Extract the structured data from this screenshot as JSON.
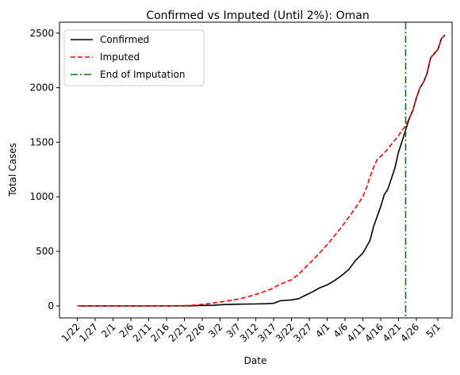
{
  "chart_data": {
    "type": "line",
    "title": "Confirmed vs Imputed (Until 2%): Oman",
    "xlabel": "Date",
    "ylabel": "Total Cases",
    "x_ticks": [
      "1/22",
      "1/27",
      "2/1",
      "2/6",
      "2/11",
      "2/16",
      "2/21",
      "2/26",
      "3/2",
      "3/7",
      "3/12",
      "3/17",
      "3/22",
      "3/27",
      "4/1",
      "4/6",
      "4/11",
      "4/16",
      "4/21",
      "4/26",
      "5/1"
    ],
    "y_ticks": [
      0,
      500,
      1000,
      1500,
      2000,
      2500
    ],
    "ylim": [
      -110,
      2600
    ],
    "xlim": [
      "1/17",
      "5/5"
    ],
    "grid": false,
    "legend_position": "top-left",
    "series": [
      {
        "name": "Confirmed",
        "color": "#000000",
        "style": "solid",
        "points": [
          [
            "1/22",
            0
          ],
          [
            "2/1",
            0
          ],
          [
            "2/11",
            0
          ],
          [
            "2/21",
            0
          ],
          [
            "2/24",
            2
          ],
          [
            "2/26",
            4
          ],
          [
            "2/29",
            6
          ],
          [
            "3/3",
            12
          ],
          [
            "3/7",
            16
          ],
          [
            "3/12",
            18
          ],
          [
            "3/15",
            20
          ],
          [
            "3/17",
            24
          ],
          [
            "3/19",
            48
          ],
          [
            "3/22",
            55
          ],
          [
            "3/24",
            66
          ],
          [
            "3/26",
            99
          ],
          [
            "3/28",
            131
          ],
          [
            "3/30",
            167
          ],
          [
            "4/1",
            192
          ],
          [
            "4/3",
            231
          ],
          [
            "4/5",
            277
          ],
          [
            "4/7",
            331
          ],
          [
            "4/9",
            419
          ],
          [
            "4/11",
            484
          ],
          [
            "4/13",
            599
          ],
          [
            "4/14",
            727
          ],
          [
            "4/16",
            910
          ],
          [
            "4/17",
            1019
          ],
          [
            "4/18",
            1069
          ],
          [
            "4/20",
            1266
          ],
          [
            "4/21",
            1410
          ],
          [
            "4/22",
            1508
          ],
          [
            "4/23",
            1614
          ],
          [
            "4/24",
            1716
          ],
          [
            "4/25",
            1790
          ],
          [
            "4/26",
            1905
          ],
          [
            "4/27",
            1998
          ],
          [
            "4/28",
            2049
          ],
          [
            "4/29",
            2131
          ],
          [
            "4/30",
            2274
          ],
          [
            "5/1",
            2348
          ],
          [
            "5/2",
            2447
          ],
          [
            "5/3",
            2483
          ]
        ]
      },
      {
        "name": "Imputed",
        "color": "#ff0000",
        "style": "dashed",
        "points": [
          [
            "1/22",
            0
          ],
          [
            "2/1",
            0
          ],
          [
            "2/11",
            0
          ],
          [
            "2/21",
            2
          ],
          [
            "2/24",
            8
          ],
          [
            "2/27",
            18
          ],
          [
            "3/1",
            30
          ],
          [
            "3/4",
            45
          ],
          [
            "3/7",
            62
          ],
          [
            "3/10",
            85
          ],
          [
            "3/13",
            115
          ],
          [
            "3/16",
            150
          ],
          [
            "3/19",
            200
          ],
          [
            "3/22",
            240
          ],
          [
            "3/24",
            290
          ],
          [
            "3/26",
            355
          ],
          [
            "3/28",
            420
          ],
          [
            "3/30",
            490
          ],
          [
            "4/1",
            560
          ],
          [
            "4/3",
            640
          ],
          [
            "4/5",
            720
          ],
          [
            "4/7",
            810
          ],
          [
            "4/9",
            900
          ],
          [
            "4/11",
            1000
          ],
          [
            "4/12",
            1080
          ],
          [
            "4/13",
            1180
          ],
          [
            "4/14",
            1270
          ],
          [
            "4/15",
            1340
          ],
          [
            "4/17",
            1400
          ],
          [
            "4/19",
            1480
          ],
          [
            "4/21",
            1560
          ],
          [
            "4/22",
            1610
          ],
          [
            "4/23",
            1650
          ],
          [
            "4/24",
            1720
          ],
          [
            "4/25",
            1790
          ],
          [
            "4/26",
            1905
          ],
          [
            "4/27",
            1998
          ],
          [
            "4/28",
            2049
          ],
          [
            "4/29",
            2131
          ],
          [
            "4/30",
            2274
          ],
          [
            "5/1",
            2348
          ],
          [
            "5/2",
            2447
          ],
          [
            "5/3",
            2483
          ]
        ]
      },
      {
        "name": "End of Imputation",
        "color": "#008000",
        "style": "dashdot",
        "vertical_line_at": "4/23"
      }
    ]
  }
}
